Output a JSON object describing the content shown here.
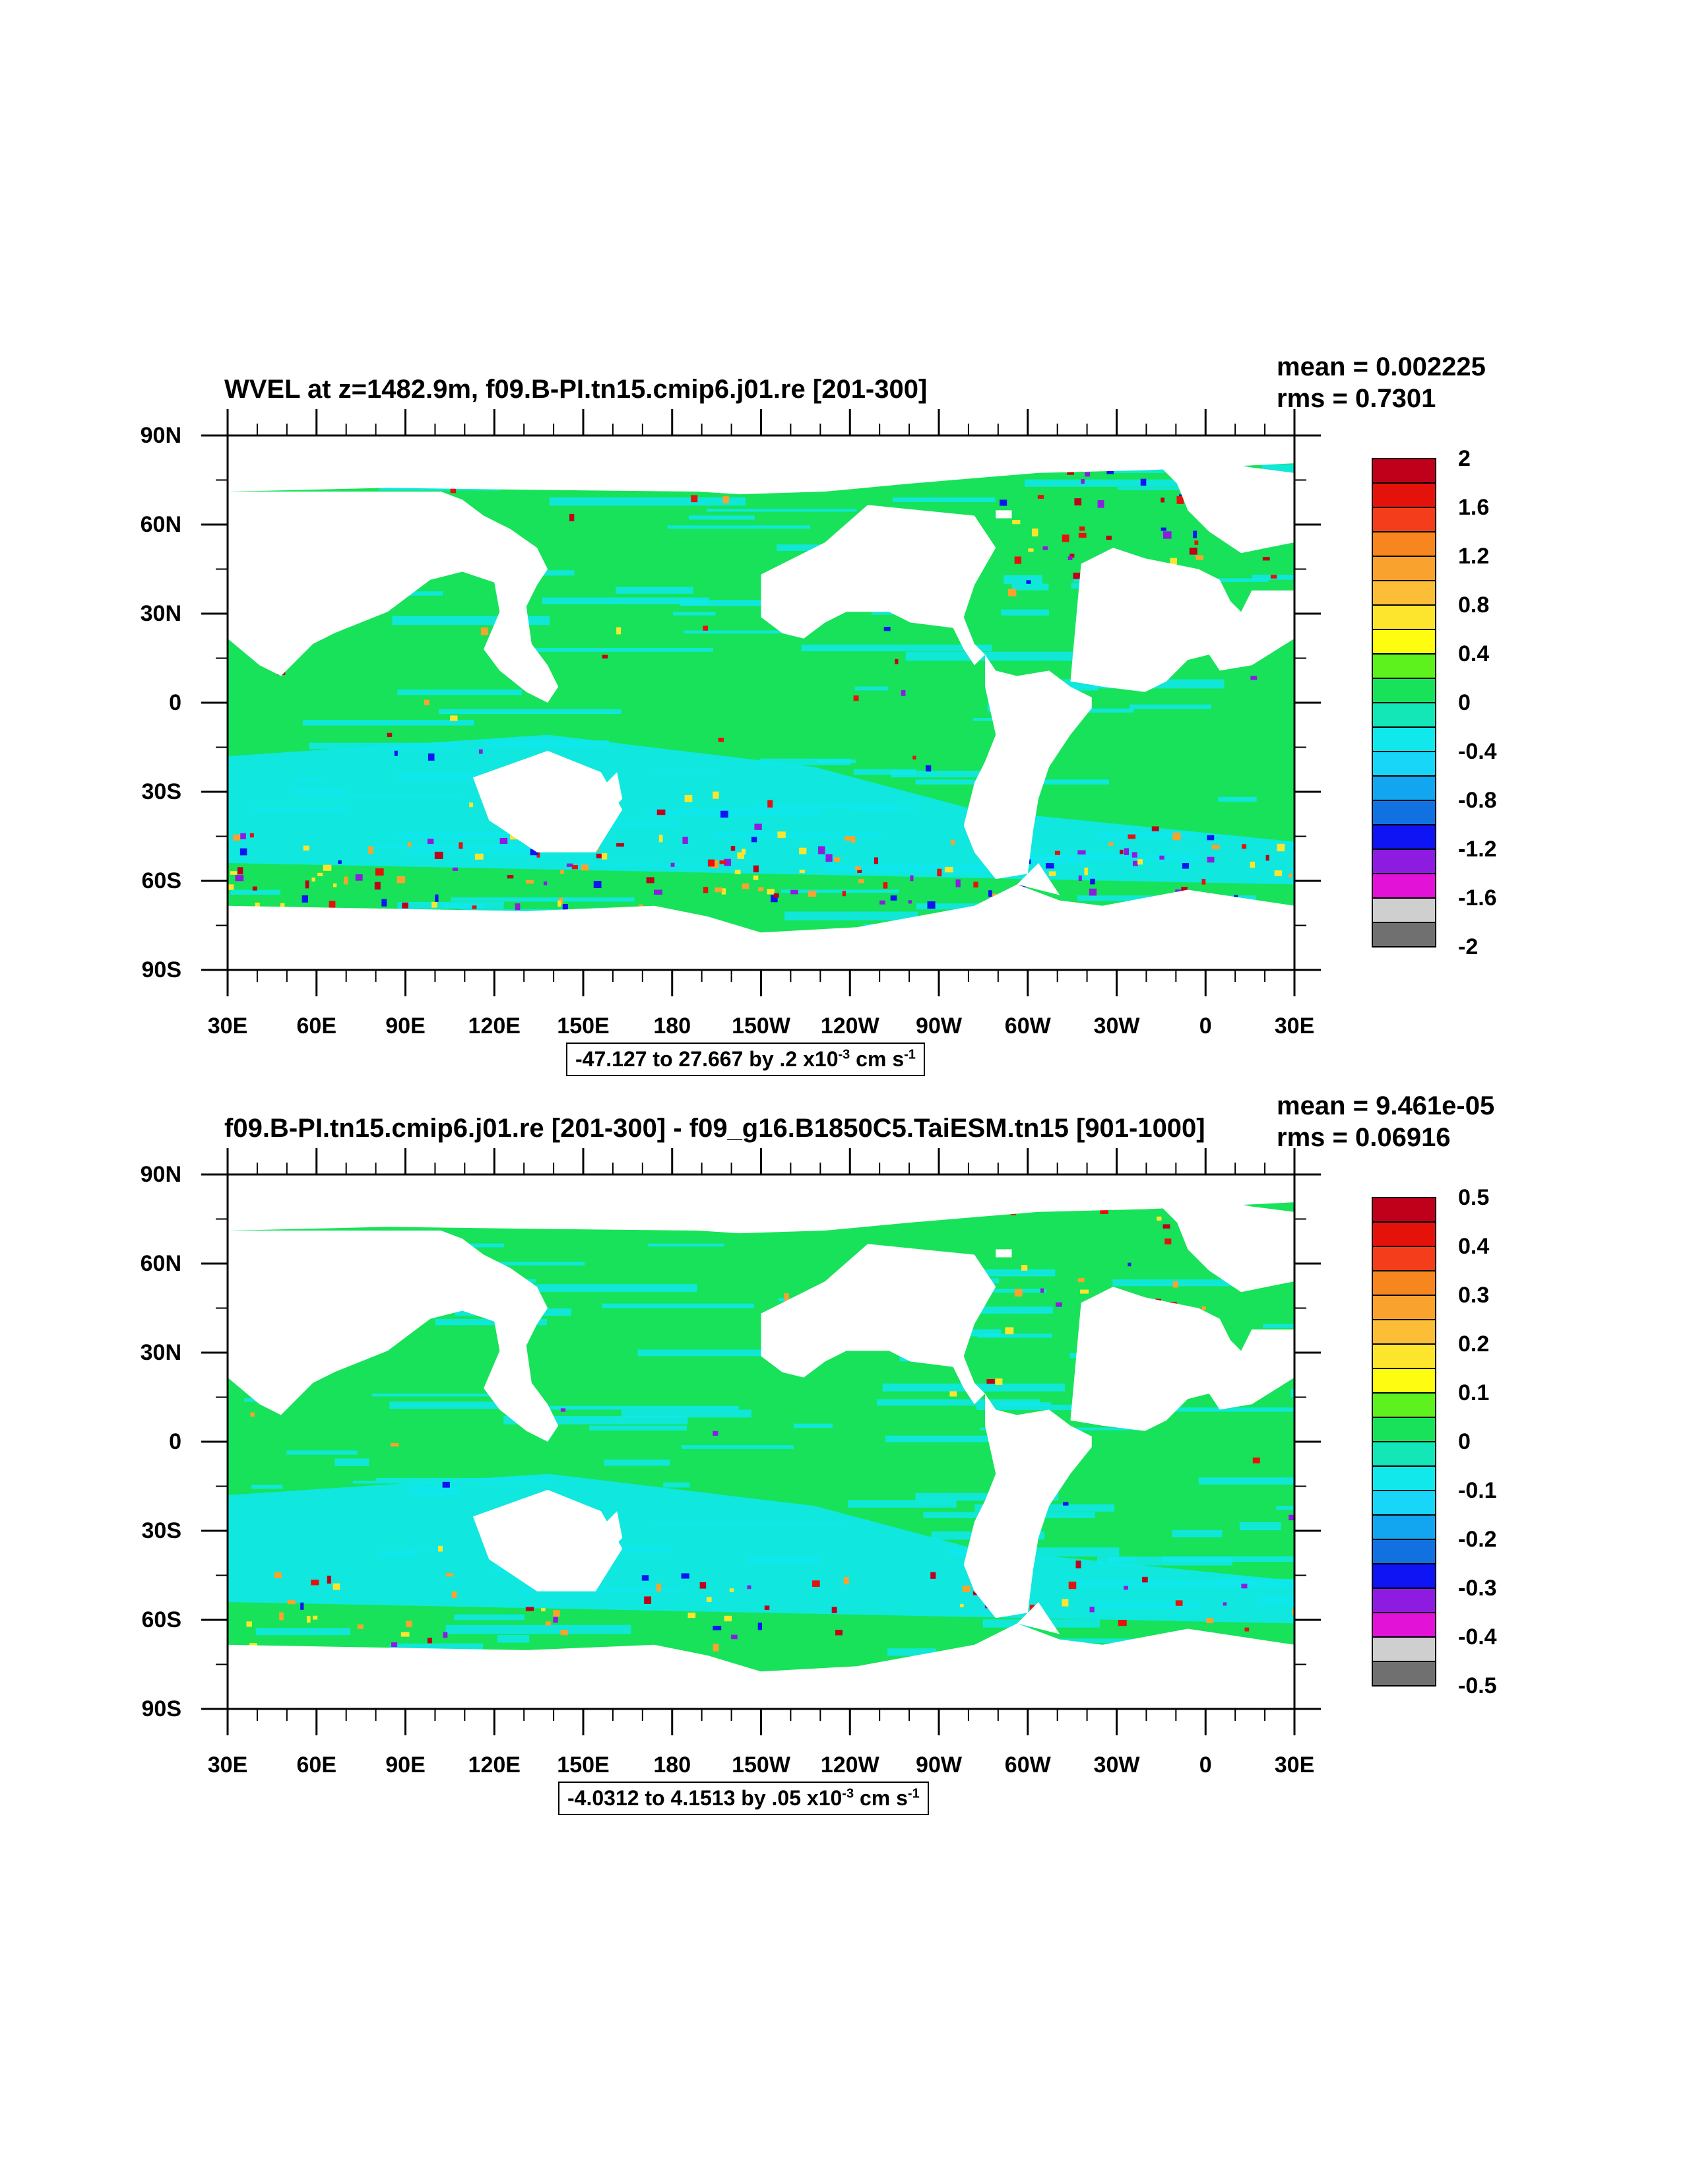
{
  "panels": [
    {
      "title": "WVEL at z=1482.9m, f09.B-PI.tn15.cmip6.j01.re [201-300]",
      "stats": {
        "mean": "mean = 0.002225",
        "rms": "rms = 0.7301"
      },
      "lat_labels": [
        "90N",
        "60N",
        "30N",
        "0",
        "30S",
        "60S",
        "90S"
      ],
      "lon_labels": [
        "30E",
        "60E",
        "90E",
        "120E",
        "150E",
        "180",
        "150W",
        "120W",
        "90W",
        "60W",
        "30W",
        "0",
        "30E"
      ],
      "colorbar_labels": [
        "2",
        "1.6",
        "1.2",
        "0.8",
        "0.4",
        "0",
        "-0.4",
        "-0.8",
        "-1.2",
        "-1.6",
        "-2"
      ],
      "contour_info": {
        "text": "-47.127 to 27.667 by .2 x10",
        "exp1": "-3",
        "unit": " cm s",
        "exp2": "-1"
      }
    },
    {
      "title": "f09.B-PI.tn15.cmip6.j01.re [201-300] - f09_g16.B1850C5.TaiESM.tn15 [901-1000]",
      "stats": {
        "mean": "mean = 9.461e-05",
        "rms": "rms = 0.06916"
      },
      "lat_labels": [
        "90N",
        "60N",
        "30N",
        "0",
        "30S",
        "60S",
        "90S"
      ],
      "lon_labels": [
        "30E",
        "60E",
        "90E",
        "120E",
        "150E",
        "180",
        "150W",
        "120W",
        "90W",
        "60W",
        "30W",
        "0",
        "30E"
      ],
      "colorbar_labels": [
        "0.5",
        "0.4",
        "0.3",
        "0.2",
        "0.1",
        "0",
        "-0.1",
        "-0.2",
        "-0.3",
        "-0.4",
        "-0.5"
      ],
      "contour_info": {
        "text": "-4.0312 to 4.1513 by .05 x10",
        "exp1": "-3",
        "unit": " cm s",
        "exp2": "-1"
      }
    }
  ],
  "colorbar_colors": [
    "#c0001a",
    "#e5120c",
    "#f43d1a",
    "#f7861e",
    "#f9a22d",
    "#fbbe36",
    "#fde52e",
    "#fdfc11",
    "#5df21d",
    "#17e25a",
    "#13e6b7",
    "#10e8ec",
    "#17d6f7",
    "#13a6f0",
    "#1271e1",
    "#0e14f3",
    "#8e1ce0",
    "#e312d7",
    "#cfcfcf",
    "#707070"
  ],
  "colors": {
    "ocean_base": "#17e25a",
    "ocean_alt": "#10e8ec",
    "land": "#ffffff",
    "frame": "#000000"
  }
}
